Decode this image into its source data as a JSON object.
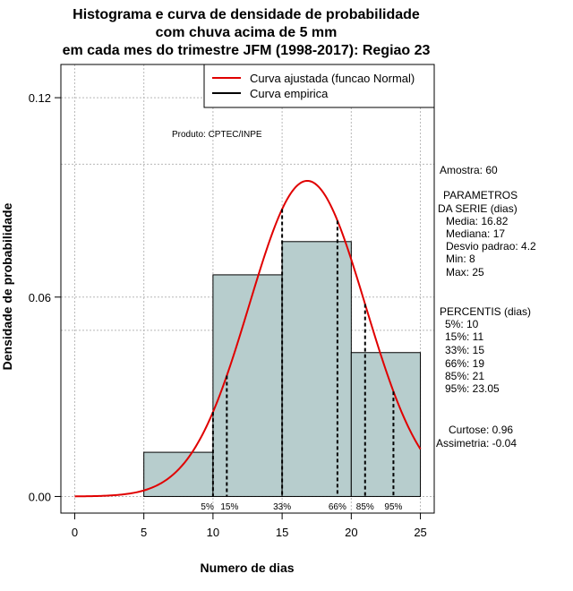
{
  "chart_data": {
    "type": "histogram",
    "title": [
      "Histograma e curva de densidade de probabilidade",
      "com chuva acima de 5 mm",
      "em cada mes do trimestre JFM (1998-2017): Regiao 23"
    ],
    "xlabel": "Numero de dias",
    "ylabel": "Densidade de probabilidade",
    "xlim": [
      -1,
      26
    ],
    "ylim": [
      -0.005,
      0.13
    ],
    "xticks": [
      0,
      5,
      10,
      15,
      20,
      25
    ],
    "yticks": [
      0.0,
      0.06,
      0.12
    ],
    "ytick_labels": [
      "0.00",
      "0.06",
      "0.12"
    ],
    "grid_y": [
      0.1,
      0.05
    ],
    "bins": [
      {
        "start": 5,
        "end": 10,
        "density": 0.0133
      },
      {
        "start": 10,
        "end": 15,
        "density": 0.0667
      },
      {
        "start": 15,
        "end": 20,
        "density": 0.0767
      },
      {
        "start": 20,
        "end": 25,
        "density": 0.0433
      }
    ],
    "normal_curve": {
      "mean": 16.82,
      "sd": 4.2,
      "from": 0,
      "to": 25,
      "color": "#e00000"
    },
    "bar_color": "#b7cdcd",
    "percentiles": [
      {
        "label": "5%",
        "value": 10
      },
      {
        "label": "15%",
        "value": 11
      },
      {
        "label": "33%",
        "value": 15
      },
      {
        "label": "66%",
        "value": 19
      },
      {
        "label": "85%",
        "value": 21
      },
      {
        "label": "95%",
        "value": 23.05
      }
    ],
    "legend": {
      "position": "top-right",
      "items": [
        {
          "label": "Curva ajustada (funcao Normal)",
          "color": "#e00000"
        },
        {
          "label": "Curva empirica",
          "color": "#000000"
        }
      ]
    },
    "product_label": "Produto: CPTEC/INPE",
    "stats": {
      "sample": "Amostra: 60",
      "params_title_1": "PARAMETROS",
      "params_title_2": "DA SERIE (dias)",
      "media": "Media: 16.82",
      "mediana": "Mediana: 17",
      "desvio": "Desvio padrao: 4.2",
      "min": "Min: 8",
      "max": "Max: 25",
      "percentis_title": "PERCENTIS (dias)",
      "p5": "5%: 10",
      "p15": "15%: 11",
      "p33": "33%: 15",
      "p66": "66%: 19",
      "p85": "85%: 21",
      "p95": "95%: 23.05",
      "curtose": "Curtose: 0.96",
      "assimetria": "Assimetria: -0.04"
    }
  }
}
